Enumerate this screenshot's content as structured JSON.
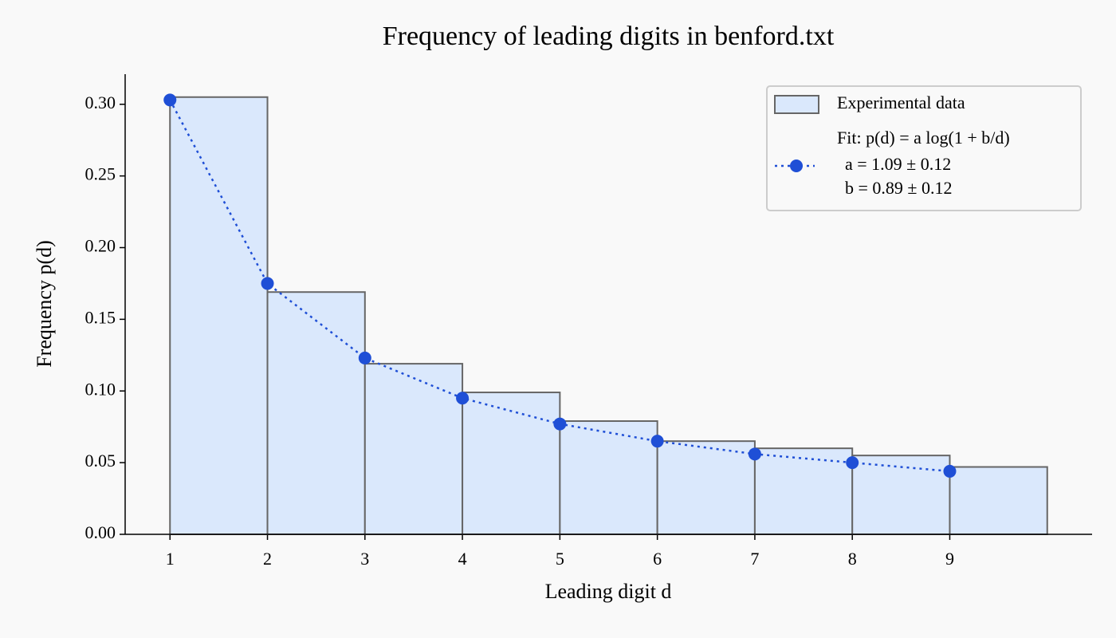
{
  "chart_data": {
    "type": "histogram",
    "title": "Frequency of leading digits in benford.txt",
    "x_label": "Leading digit d",
    "y_label": "Frequency p(d)",
    "name": "Experimental data",
    "bins": [
      1,
      2,
      3,
      4,
      5,
      6,
      7,
      8,
      9,
      10
    ],
    "values": [
      0.305,
      0.169,
      0.119,
      0.099,
      0.079,
      0.065,
      0.06,
      0.055,
      0.047
    ],
    "color": "#dae8fc",
    "edgecolor": "#666666",
    "overlay": {
      "type": "line",
      "name": "Fit: p(d) = a log(1 + b/d)",
      "params": [
        "a = 1.09 ± 0.12",
        "b = 0.89 ± 0.12"
      ],
      "color": "#1f4fd6",
      "x": [
        1,
        2,
        3,
        4,
        5,
        6,
        7,
        8,
        9
      ],
      "values": [
        0.303,
        0.175,
        0.123,
        0.095,
        0.077,
        0.065,
        0.056,
        0.05,
        0.044
      ]
    },
    "xlim": [
      0.54,
      10.46
    ],
    "ylim": [
      0,
      0.321
    ],
    "xticks": [
      1,
      2,
      3,
      4,
      5,
      6,
      7,
      8,
      9
    ],
    "yticks": [
      {
        "value": 0,
        "label": "0.00"
      },
      {
        "value": 0.05,
        "label": "0.05"
      },
      {
        "value": 0.1,
        "label": "0.10"
      },
      {
        "value": 0.15,
        "label": "0.15"
      },
      {
        "value": 0.2,
        "label": "0.20"
      },
      {
        "value": 0.25,
        "label": "0.25"
      },
      {
        "value": 0.3,
        "label": "0.30"
      }
    ],
    "legend": "upper right"
  }
}
